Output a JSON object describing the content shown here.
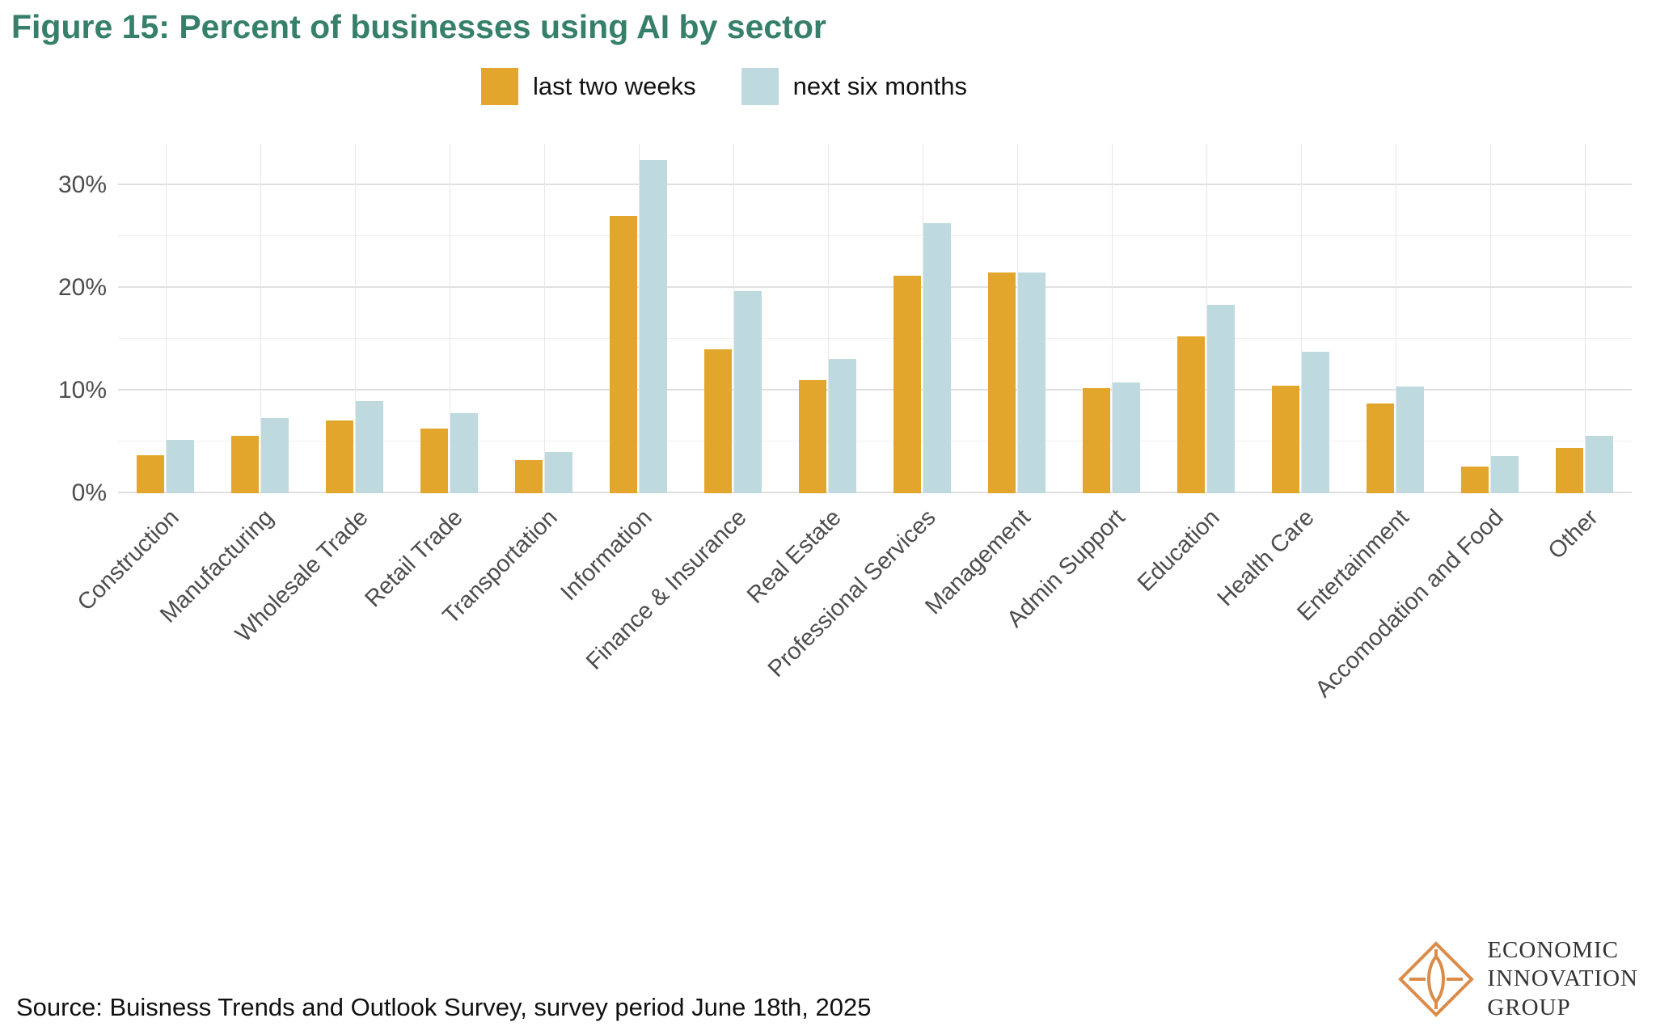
{
  "title": "Figure 15: Percent of businesses using AI by sector",
  "legend": [
    {
      "label": "last two weeks",
      "color": "#E2A62C"
    },
    {
      "label": "next six months",
      "color": "#BEDADF"
    }
  ],
  "chart_data": {
    "type": "bar",
    "title": "Figure 15: Percent of businesses using AI by sector",
    "categories": [
      "Construction",
      "Manufacturing",
      "Wholesale Trade",
      "Retail Trade",
      "Transportation",
      "Information",
      "Finance & Insurance",
      "Real Estate",
      "Professional Services",
      "Management",
      "Admin Support",
      "Education",
      "Health Care",
      "Entertainment",
      "Accomodation and Food",
      "Other"
    ],
    "series": [
      {
        "name": "last two weeks",
        "color": "#E2A62C",
        "values": [
          3.7,
          5.6,
          7.1,
          6.3,
          3.2,
          27.0,
          14.0,
          11.0,
          21.2,
          21.5,
          10.2,
          15.3,
          10.5,
          8.7,
          2.6,
          4.4
        ]
      },
      {
        "name": "next six months",
        "color": "#BEDADF",
        "values": [
          5.2,
          7.3,
          9.0,
          7.8,
          4.0,
          32.4,
          19.7,
          13.1,
          26.3,
          21.5,
          10.8,
          18.3,
          13.8,
          10.4,
          3.6,
          5.6
        ]
      }
    ],
    "xlabel": "",
    "ylabel": "",
    "ylim": [
      0,
      34
    ],
    "y_major": [
      0,
      10,
      20,
      30
    ],
    "y_minor": [
      5,
      15,
      25
    ],
    "y_tick_suffix": "%",
    "grid": true,
    "legend_position": "top-center"
  },
  "source": "Source: Buisness Trends and Outlook Survey, survey period June 18th, 2025",
  "logo": {
    "line1": "ECONOMIC",
    "line2": "INNOVATION",
    "line3": "GROUP"
  }
}
